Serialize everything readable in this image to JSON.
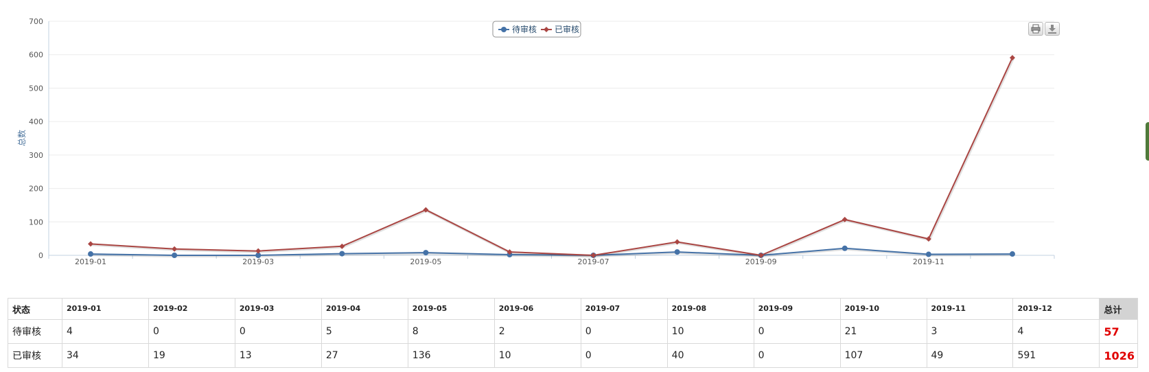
{
  "chart_data": {
    "type": "line",
    "title": "",
    "xlabel": "",
    "ylabel": "总数",
    "ylim": [
      0,
      700
    ],
    "yticks": [
      0,
      100,
      200,
      300,
      400,
      500,
      600,
      700
    ],
    "categories": [
      "2019-01",
      "2019-02",
      "2019-03",
      "2019-04",
      "2019-05",
      "2019-06",
      "2019-07",
      "2019-08",
      "2019-09",
      "2019-10",
      "2019-11",
      "2019-12"
    ],
    "xtick_labels": [
      "2019-01",
      "2019-03",
      "2019-05",
      "2019-07",
      "2019-09",
      "2019-11"
    ],
    "grid": true,
    "legend": "top-center",
    "series": [
      {
        "name": "待审核",
        "color": "#4572a7",
        "marker": "circle",
        "values": [
          4,
          0,
          0,
          5,
          8,
          2,
          0,
          10,
          0,
          21,
          3,
          4
        ]
      },
      {
        "name": "已审核",
        "color": "#aa4643",
        "marker": "diamond",
        "values": [
          34,
          19,
          13,
          27,
          136,
          10,
          0,
          40,
          0,
          107,
          49,
          591
        ]
      }
    ]
  },
  "toolbar": {
    "print_icon": "printer-icon",
    "export_icon": "download-icon"
  },
  "table": {
    "status_header": "状态",
    "total_header": "总计",
    "months": [
      "2019-01",
      "2019-02",
      "2019-03",
      "2019-04",
      "2019-05",
      "2019-06",
      "2019-07",
      "2019-08",
      "2019-09",
      "2019-10",
      "2019-11",
      "2019-12"
    ],
    "rows": [
      {
        "label": "待审核",
        "values": [
          "4",
          "0",
          "0",
          "5",
          "8",
          "2",
          "0",
          "10",
          "0",
          "21",
          "3",
          "4"
        ],
        "total": "57"
      },
      {
        "label": "已审核",
        "values": [
          "34",
          "19",
          "13",
          "27",
          "136",
          "10",
          "0",
          "40",
          "0",
          "107",
          "49",
          "591"
        ],
        "total": "1026"
      }
    ]
  }
}
